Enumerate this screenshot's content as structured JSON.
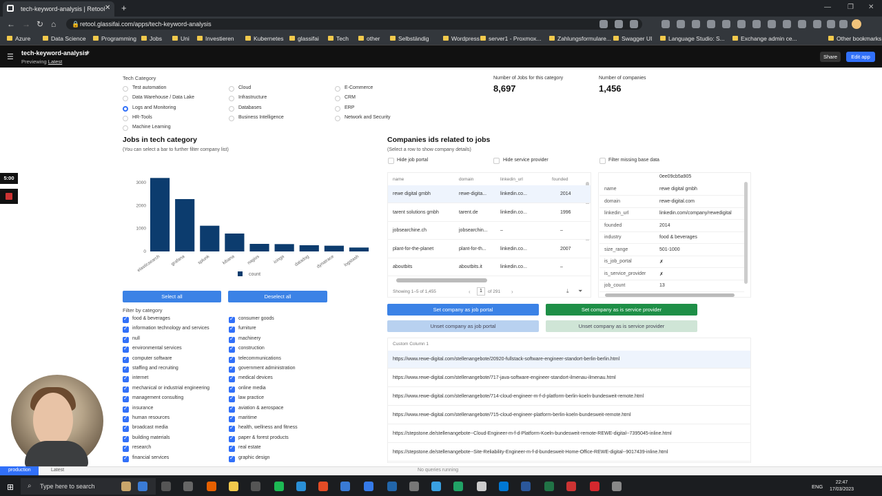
{
  "browser": {
    "tab_title": "tech-keyword-analysis | Retool",
    "url": "retool.glassifai.com/apps/tech-keyword-analysis",
    "bookmarks": [
      "Azure",
      "Data Science",
      "Programming",
      "Jobs",
      "Uni",
      "Investieren",
      "Kubernetes",
      "glassifai",
      "Tech",
      "other",
      "Selbständig",
      "Wordpress",
      "server1 - Proxmox...",
      "Zahlungsformulare...",
      "Swagger UI",
      "Language Studio: S...",
      "Exchange admin ce...",
      "Other bookmarks"
    ]
  },
  "app": {
    "title": "tech-keyword-analysis",
    "previewing": "Previewing",
    "latest": "Latest",
    "share": "Share",
    "edit_app": "Edit app"
  },
  "recorder": {
    "time": "5:00"
  },
  "category": {
    "label": "Tech Category",
    "options": [
      "Test automation",
      "Cloud",
      "E-Commerce",
      "Data Warehouse / Data Lake",
      "Infrastructure",
      "CRM",
      "Logs and Monitoring",
      "Databases",
      "ERP",
      "HR-Tools",
      "Business Intelligence",
      "Network and Security",
      "Machine Learning"
    ],
    "selected": "Logs and Monitoring"
  },
  "stats": {
    "jobs_label": "Number of Jobs for this category",
    "jobs_value": "8,697",
    "companies_label": "Number of companies",
    "companies_value": "1,456"
  },
  "jobs_chart": {
    "title": "Jobs in tech category",
    "subtitle": "(You can select a bar to further filter company list)",
    "legend": "count",
    "select_all": "Select all",
    "deselect_all": "Deselect all"
  },
  "chart_data": {
    "type": "bar",
    "categories": [
      "elasticsearch",
      "grafana",
      "splunk",
      "kibana",
      "nagios",
      "icinga",
      "datadog",
      "dynatrace",
      "logstash"
    ],
    "values": [
      3200,
      2280,
      1120,
      780,
      330,
      320,
      270,
      250,
      170
    ],
    "ylim": [
      0,
      3300
    ],
    "yticks": [
      0,
      1000,
      2000,
      3000
    ],
    "series": [
      {
        "name": "count",
        "color": "#0c3c6e"
      }
    ],
    "legend_position": "bottom",
    "grid": false
  },
  "filter": {
    "label": "Filter by category",
    "left": [
      "food & beverages",
      "information technology and services",
      "null",
      "environmental services",
      "computer software",
      "staffing and recruiting",
      "internet",
      "mechanical or industrial engineering",
      "management consulting",
      "insurance",
      "human resources",
      "broadcast media",
      "building materials",
      "research",
      "financial services"
    ],
    "right": [
      "consumer goods",
      "furniture",
      "machinery",
      "construction",
      "telecommunications",
      "government administration",
      "medical devices",
      "online media",
      "law practice",
      "aviation & aerospace",
      "maritime",
      "health, wellness and fitness",
      "paper & forest products",
      "real estate",
      "graphic design"
    ]
  },
  "companies": {
    "title": "Companies ids related to jobs",
    "subtitle": "(Select a row to show company details)",
    "hide_job_portal": "Hide job portal",
    "hide_service_provider": "Hide service provider",
    "filter_missing": "Filter missing base data",
    "columns": [
      "name",
      "domain",
      "linkedin_url",
      "founded"
    ],
    "rows": [
      [
        "rewe digital gmbh",
        "rewe-digita...",
        "linkedin.co...",
        "2014"
      ],
      [
        "tarent solutions gmbh",
        "tarent.de",
        "linkedin.co...",
        "1996"
      ],
      [
        "jobsearchine.ch",
        "jobsearchin...",
        "–",
        "–"
      ],
      [
        "plant-for-the-planet",
        "plant-for-th...",
        "linkedin.co...",
        "2007"
      ],
      [
        "aboutbits",
        "aboutbits.it",
        "linkedin.co...",
        "–"
      ]
    ],
    "showing": "Showing 1–5 of 1,455",
    "page": "1",
    "of_pages": "of 291"
  },
  "detail": {
    "id": "0ee09cb5a905",
    "rows": [
      [
        "name",
        "rewe digital gmbh"
      ],
      [
        "domain",
        "rewe-digital.com"
      ],
      [
        "linkedin_url",
        "linkedin.com/company/rewedigital"
      ],
      [
        "founded",
        "2014"
      ],
      [
        "industry",
        "food & beverages"
      ],
      [
        "size_range",
        "501-1000"
      ],
      [
        "is_job_portal",
        "✗"
      ],
      [
        "is_service_provider",
        "✗"
      ],
      [
        "job_count",
        "13"
      ]
    ]
  },
  "actions": {
    "set_job_portal": "Set company as job portal",
    "set_service_provider": "Set company as is service provider",
    "unset_job_portal": "Unset company as job portal",
    "unset_service_provider": "Unset company as is service provider"
  },
  "urls": {
    "header": "Custom Column 1",
    "rows": [
      "https://www.rewe-digital.com/stellenangebote/20920-fullstack-software-engineer-standort-berlin-berlin.html",
      "https://www.rewe-digital.com/stellenangebote/717-java-software-engineer-standort-ilmenau-ilmenau.html",
      "https://www.rewe-digital.com/stellenangebote/714-cloud-engineer-m-f-d-platform-berlin-koeln-bundesweit-remote.html",
      "https://www.rewe-digital.com/stellenangebote/715-cloud-engineer-platform-berlin-koeln-bundesweit-remote.html",
      "https://stepstone.de/stellenangebote--Cloud-Engineer-m-f-d-Platform-Koeln-bundesweit-remote-REWE-digital--7395045-inline.html",
      "https://stepstone.de/stellenangebote--Site-Reliability-Engineer-m-f-d-bundesweit-Home-Office-REWE-digital--9017439-inline.html"
    ]
  },
  "status": {
    "env": "production",
    "latest": "Latest",
    "queries": "No queries running"
  },
  "taskbar": {
    "search": "Type here to search",
    "lang": "ENG",
    "time": "22:47",
    "date": "17/03/2023"
  }
}
